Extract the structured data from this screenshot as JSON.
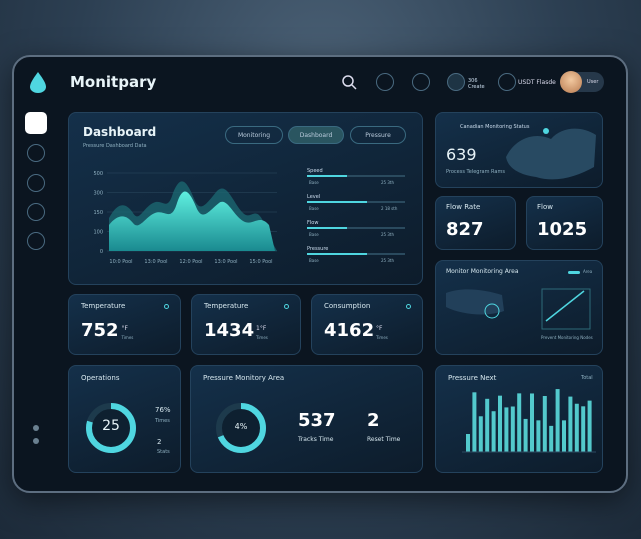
{
  "header": {
    "title": "Monitpary",
    "status": "306 Create",
    "account": "USDT Flasde",
    "user": "User"
  },
  "dashboard": {
    "title": "Dashboard",
    "subtitle": "Pressure Dashboard Data",
    "tabs": [
      "Monitoring",
      "Dashboard",
      "Pressure"
    ],
    "yticks": [
      "500",
      "300",
      "150",
      "100",
      "0"
    ],
    "xlabels": [
      "10:0 Pool",
      "13:0 Pool",
      "12:0 Pool",
      "13:0 Pool",
      "15:0 Pool"
    ],
    "rows": [
      {
        "label": "Speed",
        "left": "Base",
        "right": "25 3th"
      },
      {
        "label": "Level",
        "left": "Base",
        "right": "2 18 sth"
      },
      {
        "label": "Flow",
        "left": "Base",
        "right": "25 3th"
      },
      {
        "label": "Pressure",
        "left": "Base",
        "right": "25 3th"
      }
    ]
  },
  "map": {
    "caption": "Canadian Monitoring Status",
    "value": "639",
    "label": "Process Telegram Rams"
  },
  "kpis": [
    {
      "label": "Flow Rate",
      "value": "827"
    },
    {
      "label": "Flow",
      "value": "1025"
    }
  ],
  "monitoring": {
    "title": "Monitor Monitoring Area",
    "legend": "Area",
    "caption": "Prevent Monitoring Nodes"
  },
  "temps": [
    {
      "label": "Temperature",
      "value": "752",
      "unit": "°F",
      "note": "Times"
    },
    {
      "label": "Temperature",
      "value": "1434",
      "unit": "1°F",
      "note": "Times"
    },
    {
      "label": "Consumption",
      "value": "4162",
      "unit": "°F",
      "note": "Times"
    }
  ],
  "operations": {
    "title": "Operations",
    "value": "25",
    "stats": [
      "76%",
      "Times",
      "2",
      "Stats"
    ]
  },
  "pressure": {
    "title": "Pressure Monitory Area",
    "ring": "4%",
    "stats": [
      {
        "value": "537",
        "label": "Tracks Time"
      },
      {
        "value": "2",
        "label": "Reset Time"
      }
    ]
  },
  "bars": {
    "title": "Pressure Next",
    "legend": "Total"
  }
}
